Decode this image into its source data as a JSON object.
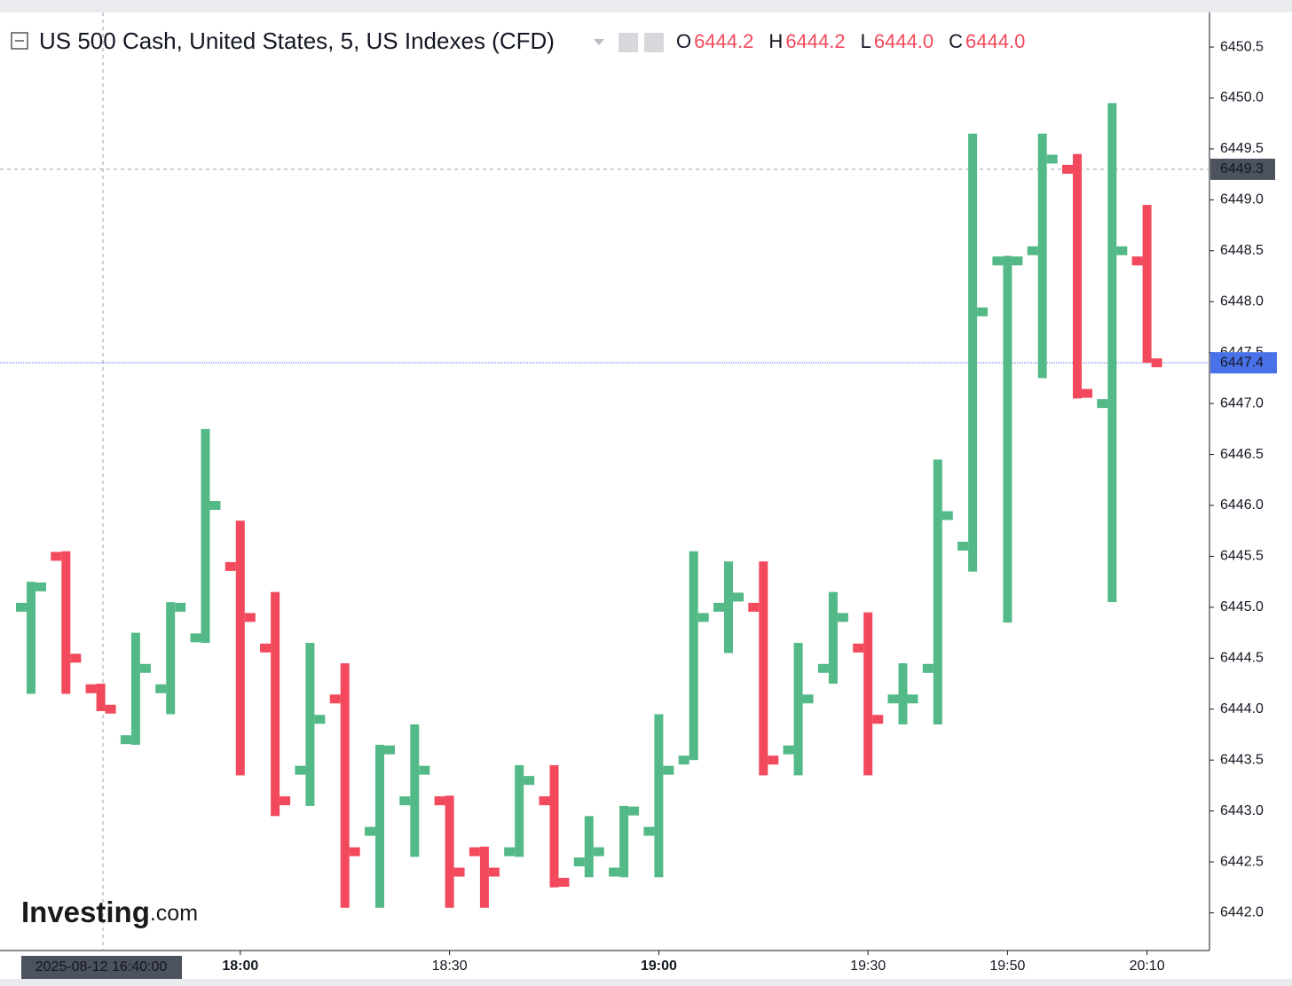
{
  "chart_data": {
    "type": "ohlc",
    "title": "US 500 Cash, United States, 5, US Indexes (CFD)",
    "ohlc_legend": [
      {
        "key": "O",
        "value": "6444.2"
      },
      {
        "key": "H",
        "value": "6444.2"
      },
      {
        "key": "L",
        "value": "6444.0"
      },
      {
        "key": "C",
        "value": "6444.0"
      }
    ],
    "x": [
      "17:30",
      "17:35",
      "17:40",
      "17:45",
      "17:50",
      "17:55",
      "18:00",
      "18:05",
      "18:10",
      "18:15",
      "18:20",
      "18:25",
      "18:30",
      "18:35",
      "18:40",
      "18:45",
      "18:50",
      "18:55",
      "19:00",
      "19:05",
      "19:10",
      "19:15",
      "19:20",
      "19:25",
      "19:30",
      "19:35",
      "19:40",
      "19:45",
      "19:50",
      "19:55",
      "20:00",
      "20:05",
      "20:10"
    ],
    "open": [
      6445.0,
      6445.5,
      6444.2,
      6443.7,
      6444.2,
      6444.7,
      6445.4,
      6444.6,
      6443.4,
      6444.1,
      6442.8,
      6443.1,
      6443.1,
      6442.6,
      6442.6,
      6443.1,
      6442.5,
      6442.4,
      6442.8,
      6443.5,
      6445.0,
      6445.0,
      6443.6,
      6444.4,
      6444.6,
      6444.1,
      6444.4,
      6445.6,
      6448.4,
      6448.5,
      6449.3,
      6447.0,
      6448.4
    ],
    "high": [
      6445.25,
      6445.55,
      6444.25,
      6444.75,
      6445.05,
      6446.75,
      6445.85,
      6445.15,
      6444.65,
      6444.45,
      6443.65,
      6443.85,
      6443.15,
      6442.65,
      6443.45,
      6443.45,
      6442.95,
      6443.05,
      6443.95,
      6445.55,
      6445.45,
      6445.45,
      6444.65,
      6445.15,
      6444.95,
      6444.45,
      6446.45,
      6449.65,
      6448.45,
      6449.65,
      6449.45,
      6449.95,
      6448.95
    ],
    "low": [
      6444.15,
      6444.15,
      6443.98,
      6443.65,
      6443.95,
      6444.65,
      6443.35,
      6442.95,
      6443.05,
      6442.05,
      6442.05,
      6442.55,
      6442.05,
      6442.05,
      6442.55,
      6442.25,
      6442.35,
      6442.35,
      6442.35,
      6443.5,
      6444.55,
      6443.35,
      6443.35,
      6444.25,
      6443.35,
      6443.85,
      6443.85,
      6445.35,
      6444.85,
      6447.25,
      6447.05,
      6445.05,
      6447.4
    ],
    "close": [
      6445.2,
      6444.5,
      6444.0,
      6444.4,
      6445.0,
      6446.0,
      6444.9,
      6443.1,
      6443.9,
      6442.6,
      6443.6,
      6443.4,
      6442.4,
      6442.4,
      6443.3,
      6442.3,
      6442.6,
      6443.0,
      6443.4,
      6444.9,
      6445.1,
      6443.5,
      6444.1,
      6444.9,
      6443.9,
      6444.1,
      6445.9,
      6447.9,
      6448.4,
      6449.4,
      6447.1,
      6448.5,
      6447.4
    ],
    "up_color": "#53b987",
    "down_color": "#f2495c",
    "ylim": [
      6441.63,
      6450.84
    ],
    "yticks": [
      {
        "value": 6442.0,
        "label": "6442.0"
      },
      {
        "value": 6442.5,
        "label": "6442.5"
      },
      {
        "value": 6443.0,
        "label": "6443.0"
      },
      {
        "value": 6443.5,
        "label": "6443.5"
      },
      {
        "value": 6444.0,
        "label": "6444.0"
      },
      {
        "value": 6444.5,
        "label": "6444.5"
      },
      {
        "value": 6445.0,
        "label": "6445.0"
      },
      {
        "value": 6445.5,
        "label": "6445.5"
      },
      {
        "value": 6446.0,
        "label": "6446.0"
      },
      {
        "value": 6446.5,
        "label": "6446.5"
      },
      {
        "value": 6447.0,
        "label": "6447.0"
      },
      {
        "value": 6447.5,
        "label": "6447.5"
      },
      {
        "value": 6448.0,
        "label": "6448.0"
      },
      {
        "value": 6448.5,
        "label": "6448.5"
      },
      {
        "value": 6449.0,
        "label": "6449.0"
      },
      {
        "value": 6449.5,
        "label": "6449.5"
      },
      {
        "value": 6450.0,
        "label": "6450.0"
      },
      {
        "value": 6450.5,
        "label": "6450.5"
      }
    ],
    "xticks": [
      "18:00",
      "18:30",
      "19:00",
      "19:30",
      "19:50",
      "20:10"
    ],
    "crosshair": {
      "x_label": "2025-08-12 16:40:00",
      "y": 6449.3,
      "color": "#4c525e"
    },
    "last_price": {
      "value": 6447.4,
      "color": "#4a72e8"
    },
    "logo": "Investing",
    "logo_suffix": ".com"
  }
}
